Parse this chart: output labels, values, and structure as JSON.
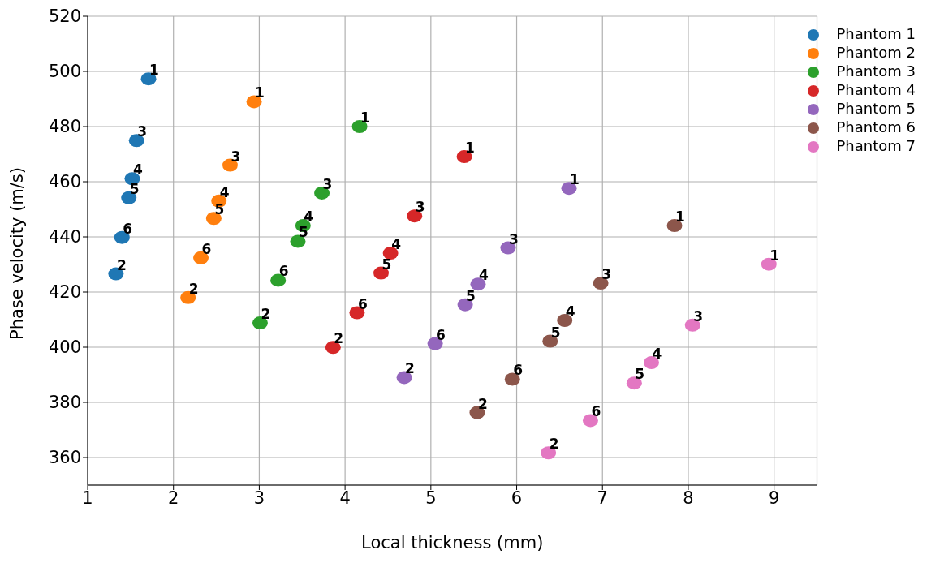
{
  "chart_data": {
    "type": "scatter",
    "xlabel": "Local thickness (mm)",
    "ylabel": "Phase velocity (m/s)",
    "xlim": [
      1,
      9.5
    ],
    "xticks": [
      1,
      2,
      3,
      4,
      5,
      6,
      7,
      8,
      9
    ],
    "ylim": [
      350,
      520
    ],
    "yticks": [
      360,
      380,
      400,
      420,
      440,
      460,
      480,
      500,
      520
    ],
    "grid": true,
    "legend": "top right",
    "marker": "circle",
    "series": [
      {
        "name": "Phantom 1",
        "color": "#1f77b4",
        "x": [
          1.71,
          1.33,
          1.57,
          1.52,
          1.48,
          1.4
        ],
        "values": [
          497.3,
          426.6,
          474.9,
          461.1,
          454.2,
          439.8
        ]
      },
      {
        "name": "Phantom 2",
        "color": "#ff7f0e",
        "x": [
          2.94,
          2.17,
          2.66,
          2.53,
          2.47,
          2.32
        ],
        "values": [
          489,
          418,
          466,
          453,
          446.7,
          432.4
        ]
      },
      {
        "name": "Phantom 3",
        "color": "#2ca02c",
        "x": [
          4.17,
          3.01,
          3.73,
          3.51,
          3.45,
          3.22
        ],
        "values": [
          480,
          408.8,
          455.9,
          444.1,
          438.4,
          424.3
        ]
      },
      {
        "name": "Phantom 4",
        "color": "#d62728",
        "x": [
          5.39,
          3.86,
          4.81,
          4.53,
          4.42,
          4.14
        ],
        "values": [
          469.1,
          399.9,
          447.6,
          434.1,
          426.9,
          412.5
        ]
      },
      {
        "name": "Phantom 5",
        "color": "#9467bd",
        "x": [
          6.61,
          4.69,
          5.9,
          5.55,
          5.4,
          5.05
        ],
        "values": [
          457.6,
          389,
          436,
          422.9,
          415.4,
          401.3
        ]
      },
      {
        "name": "Phantom 6",
        "color": "#8c564b",
        "x": [
          7.84,
          5.54,
          6.98,
          6.56,
          6.39,
          5.95
        ],
        "values": [
          444.1,
          376.3,
          423.2,
          409.7,
          402.2,
          388.4
        ]
      },
      {
        "name": "Phantom 7",
        "color": "#e377c2",
        "x": [
          8.94,
          6.37,
          8.05,
          7.57,
          7.37,
          6.86
        ],
        "values": [
          430.1,
          361.7,
          408,
          394.4,
          387,
          373.4
        ]
      }
    ],
    "annotations": [
      {
        "text": "1",
        "x": 1.71,
        "y": 497.3
      },
      {
        "text": "2",
        "x": 1.33,
        "y": 426.6
      },
      {
        "text": "3",
        "x": 1.57,
        "y": 474.9
      },
      {
        "text": "4",
        "x": 1.52,
        "y": 461.1
      },
      {
        "text": "5",
        "x": 1.48,
        "y": 454.2
      },
      {
        "text": "6",
        "x": 1.4,
        "y": 439.8
      },
      {
        "text": "1",
        "x": 2.94,
        "y": 489
      },
      {
        "text": "2",
        "x": 2.17,
        "y": 418
      },
      {
        "text": "3",
        "x": 2.66,
        "y": 466
      },
      {
        "text": "4",
        "x": 2.53,
        "y": 453
      },
      {
        "text": "5",
        "x": 2.47,
        "y": 446.7
      },
      {
        "text": "6",
        "x": 2.32,
        "y": 432.4
      },
      {
        "text": "1",
        "x": 4.17,
        "y": 480
      },
      {
        "text": "2",
        "x": 3.01,
        "y": 408.8
      },
      {
        "text": "3",
        "x": 3.73,
        "y": 455.9
      },
      {
        "text": "4",
        "x": 3.51,
        "y": 444.1
      },
      {
        "text": "5",
        "x": 3.45,
        "y": 438.4
      },
      {
        "text": "6",
        "x": 3.22,
        "y": 424.3
      },
      {
        "text": "1",
        "x": 5.39,
        "y": 469.1
      },
      {
        "text": "2",
        "x": 3.86,
        "y": 399.9
      },
      {
        "text": "3",
        "x": 4.81,
        "y": 447.6
      },
      {
        "text": "4",
        "x": 4.53,
        "y": 434.1
      },
      {
        "text": "5",
        "x": 4.42,
        "y": 426.9
      },
      {
        "text": "6",
        "x": 4.14,
        "y": 412.5
      },
      {
        "text": "1",
        "x": 6.61,
        "y": 457.6
      },
      {
        "text": "2",
        "x": 4.69,
        "y": 389
      },
      {
        "text": "3",
        "x": 5.9,
        "y": 436
      },
      {
        "text": "4",
        "x": 5.55,
        "y": 422.9
      },
      {
        "text": "5",
        "x": 5.4,
        "y": 415.4
      },
      {
        "text": "6",
        "x": 5.05,
        "y": 401.3
      },
      {
        "text": "1",
        "x": 7.84,
        "y": 444.1
      },
      {
        "text": "2",
        "x": 5.54,
        "y": 376.3
      },
      {
        "text": "3",
        "x": 6.98,
        "y": 423.2
      },
      {
        "text": "4",
        "x": 6.56,
        "y": 409.7
      },
      {
        "text": "5",
        "x": 6.39,
        "y": 402.2
      },
      {
        "text": "6",
        "x": 5.95,
        "y": 388.4
      },
      {
        "text": "1",
        "x": 8.94,
        "y": 430.1
      },
      {
        "text": "2",
        "x": 6.37,
        "y": 361.7
      },
      {
        "text": "3",
        "x": 8.05,
        "y": 408
      },
      {
        "text": "4",
        "x": 7.57,
        "y": 394.4
      },
      {
        "text": "5",
        "x": 7.37,
        "y": 387
      },
      {
        "text": "6",
        "x": 6.86,
        "y": 373.4
      }
    ]
  }
}
